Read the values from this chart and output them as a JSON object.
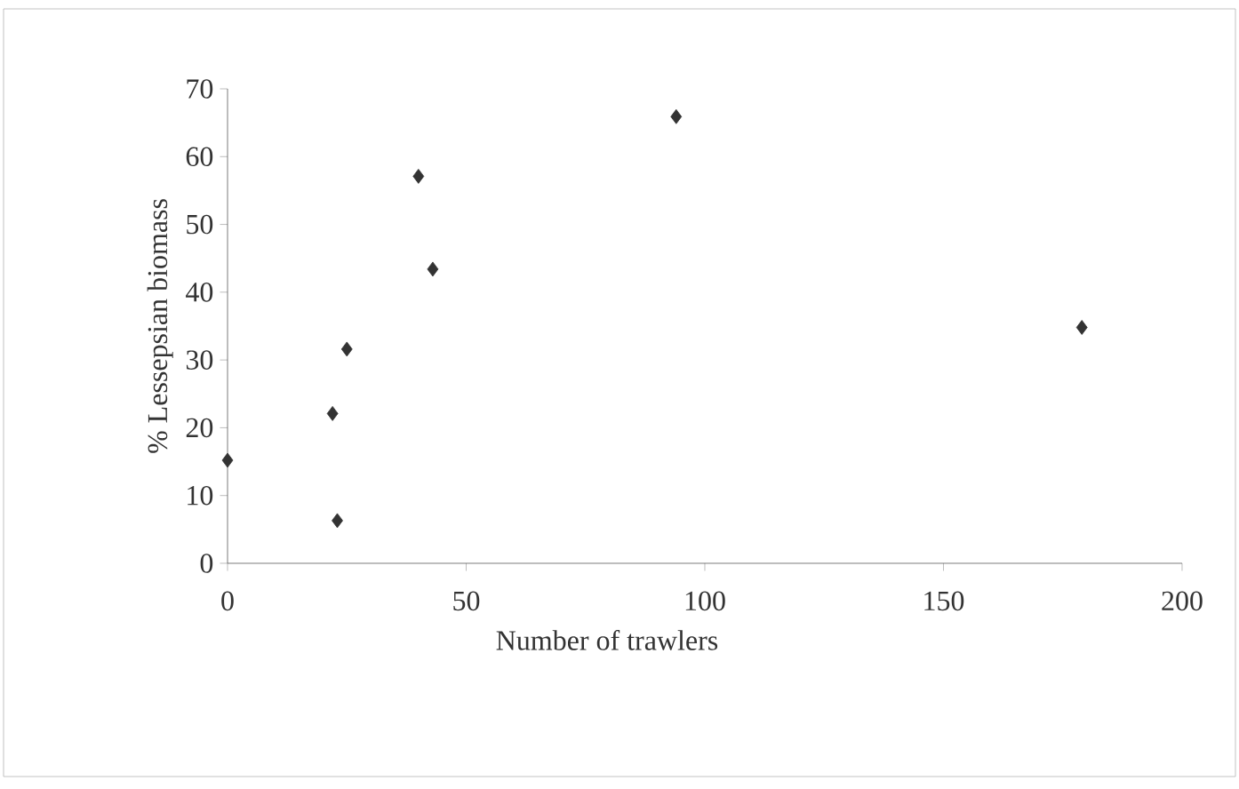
{
  "chart_data": {
    "type": "scatter",
    "xlabel": "Number of trawlers",
    "ylabel": "% Lessepsian biomass",
    "x": [
      0,
      22,
      23,
      25,
      40,
      43,
      94,
      179
    ],
    "values": [
      15.2,
      22.1,
      6.3,
      31.6,
      57.1,
      43.4,
      65.9,
      34.8
    ],
    "color": "#333333",
    "marker": "diamond",
    "xlim": [
      0,
      200
    ],
    "xticks": [
      0,
      50,
      100,
      150,
      200
    ],
    "ylim": [
      0,
      70
    ],
    "yticks": [
      0,
      10,
      20,
      30,
      40,
      50,
      60,
      70
    ],
    "grid": false
  }
}
